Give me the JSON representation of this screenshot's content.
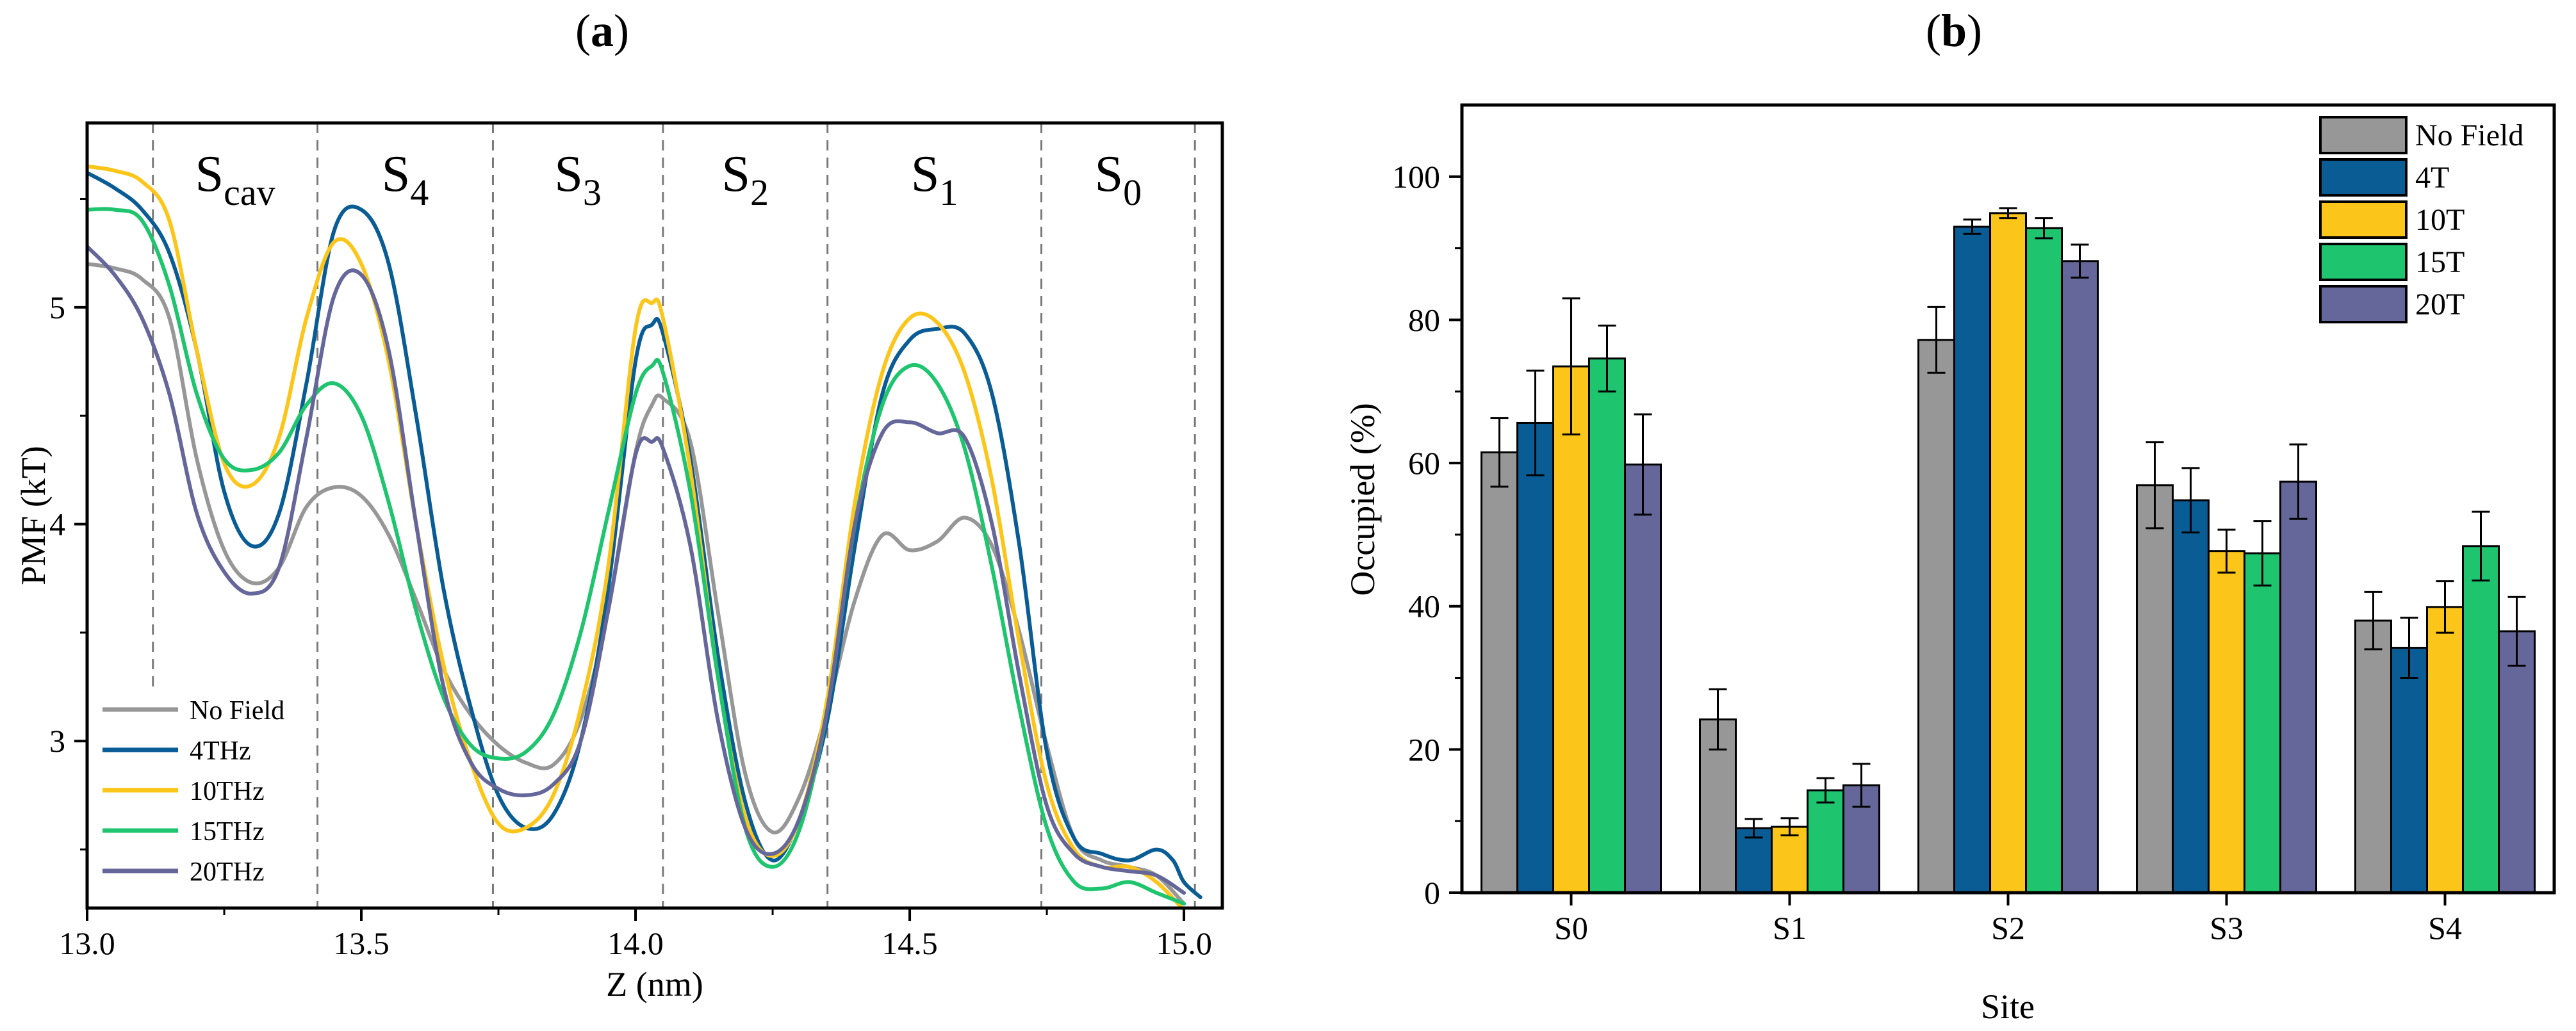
{
  "colors": {
    "no_field": "#979797",
    "f4": "#0a5c95",
    "f10": "#fcc519",
    "f15": "#1fc46e",
    "f20": "#65679a",
    "axis": "#000000",
    "grid_dash": "#7a7a7a"
  },
  "chart_data": [
    {
      "panel_label_open": "(",
      "panel_label_letter": "a",
      "panel_label_close": ")",
      "type": "line",
      "xlabel": "Z (nm)",
      "ylabel": "PMF (kT)",
      "xlim": [
        13.0,
        15.07
      ],
      "ylim": [
        2.23,
        5.85
      ],
      "xticks": [
        13.0,
        13.5,
        14.0,
        14.5,
        15.0
      ],
      "xtick_labels": [
        "13.0",
        "13.5",
        "14.0",
        "14.5",
        "15.0"
      ],
      "yticks": [
        3,
        4,
        5
      ],
      "ytick_labels": [
        "3",
        "4",
        "5"
      ],
      "site_boundaries": [
        13.12,
        13.42,
        13.74,
        14.05,
        14.35,
        14.74,
        15.02
      ],
      "sites": [
        {
          "base": "S",
          "sub": "cav",
          "x": 13.27
        },
        {
          "base": "S",
          "sub": "4",
          "x": 13.58
        },
        {
          "base": "S",
          "sub": "3",
          "x": 13.895
        },
        {
          "base": "S",
          "sub": "2",
          "x": 14.2
        },
        {
          "base": "S",
          "sub": "1",
          "x": 14.545
        },
        {
          "base": "S",
          "sub": "0",
          "x": 14.88
        }
      ],
      "legend_position": "bottom-left",
      "series": [
        {
          "name": "No Field",
          "color_key": "no_field",
          "points": [
            [
              13.0,
              5.2
            ],
            [
              13.05,
              5.18
            ],
            [
              13.1,
              5.13
            ],
            [
              13.15,
              4.95
            ],
            [
              13.2,
              4.3
            ],
            [
              13.25,
              3.88
            ],
            [
              13.3,
              3.73
            ],
            [
              13.35,
              3.8
            ],
            [
              13.4,
              4.08
            ],
            [
              13.45,
              4.17
            ],
            [
              13.5,
              4.13
            ],
            [
              13.55,
              3.95
            ],
            [
              13.6,
              3.65
            ],
            [
              13.65,
              3.33
            ],
            [
              13.7,
              3.12
            ],
            [
              13.75,
              2.98
            ],
            [
              13.8,
              2.9
            ],
            [
              13.85,
              2.89
            ],
            [
              13.9,
              3.1
            ],
            [
              13.95,
              3.6
            ],
            [
              14.0,
              4.33
            ],
            [
              14.03,
              4.55
            ],
            [
              14.05,
              4.58
            ],
            [
              14.1,
              4.38
            ],
            [
              14.15,
              3.6
            ],
            [
              14.2,
              2.85
            ],
            [
              14.25,
              2.58
            ],
            [
              14.3,
              2.75
            ],
            [
              14.35,
              3.15
            ],
            [
              14.4,
              3.65
            ],
            [
              14.45,
              3.95
            ],
            [
              14.5,
              3.88
            ],
            [
              14.55,
              3.92
            ],
            [
              14.6,
              4.03
            ],
            [
              14.65,
              3.9
            ],
            [
              14.7,
              3.5
            ],
            [
              14.75,
              2.98
            ],
            [
              14.8,
              2.55
            ],
            [
              14.85,
              2.45
            ],
            [
              14.9,
              2.42
            ],
            [
              14.95,
              2.38
            ],
            [
              15.0,
              2.25
            ]
          ]
        },
        {
          "name": "4THz",
          "color_key": "f4",
          "points": [
            [
              13.0,
              5.62
            ],
            [
              13.05,
              5.55
            ],
            [
              13.1,
              5.45
            ],
            [
              13.15,
              5.25
            ],
            [
              13.2,
              4.8
            ],
            [
              13.25,
              4.15
            ],
            [
              13.3,
              3.9
            ],
            [
              13.35,
              4.05
            ],
            [
              13.4,
              4.65
            ],
            [
              13.45,
              5.35
            ],
            [
              13.5,
              5.45
            ],
            [
              13.55,
              5.2
            ],
            [
              13.6,
              4.5
            ],
            [
              13.65,
              3.7
            ],
            [
              13.7,
              3.15
            ],
            [
              13.75,
              2.75
            ],
            [
              13.8,
              2.6
            ],
            [
              13.85,
              2.66
            ],
            [
              13.9,
              3.0
            ],
            [
              13.95,
              3.7
            ],
            [
              14.0,
              4.75
            ],
            [
              14.03,
              4.92
            ],
            [
              14.05,
              4.88
            ],
            [
              14.1,
              4.3
            ],
            [
              14.15,
              3.4
            ],
            [
              14.2,
              2.72
            ],
            [
              14.25,
              2.45
            ],
            [
              14.3,
              2.65
            ],
            [
              14.35,
              3.1
            ],
            [
              14.4,
              3.9
            ],
            [
              14.45,
              4.6
            ],
            [
              14.5,
              4.85
            ],
            [
              14.55,
              4.9
            ],
            [
              14.6,
              4.88
            ],
            [
              14.65,
              4.6
            ],
            [
              14.7,
              3.9
            ],
            [
              14.75,
              2.95
            ],
            [
              14.8,
              2.55
            ],
            [
              14.85,
              2.48
            ],
            [
              14.9,
              2.45
            ],
            [
              14.95,
              2.5
            ],
            [
              14.98,
              2.45
            ],
            [
              15.0,
              2.35
            ],
            [
              15.03,
              2.28
            ]
          ]
        },
        {
          "name": "10THz",
          "color_key": "f10",
          "points": [
            [
              13.0,
              5.65
            ],
            [
              13.05,
              5.63
            ],
            [
              13.1,
              5.58
            ],
            [
              13.15,
              5.4
            ],
            [
              13.2,
              4.8
            ],
            [
              13.25,
              4.28
            ],
            [
              13.3,
              4.18
            ],
            [
              13.35,
              4.4
            ],
            [
              13.4,
              4.95
            ],
            [
              13.45,
              5.3
            ],
            [
              13.5,
              5.2
            ],
            [
              13.55,
              4.75
            ],
            [
              13.6,
              4.0
            ],
            [
              13.65,
              3.35
            ],
            [
              13.7,
              2.9
            ],
            [
              13.75,
              2.62
            ],
            [
              13.8,
              2.6
            ],
            [
              13.85,
              2.75
            ],
            [
              13.9,
              3.15
            ],
            [
              13.95,
              3.8
            ],
            [
              14.0,
              4.9
            ],
            [
              14.03,
              5.02
            ],
            [
              14.05,
              4.95
            ],
            [
              14.1,
              4.25
            ],
            [
              14.15,
              3.3
            ],
            [
              14.2,
              2.65
            ],
            [
              14.25,
              2.47
            ],
            [
              14.3,
              2.65
            ],
            [
              14.35,
              3.2
            ],
            [
              14.4,
              4.1
            ],
            [
              14.45,
              4.7
            ],
            [
              14.5,
              4.95
            ],
            [
              14.55,
              4.93
            ],
            [
              14.6,
              4.7
            ],
            [
              14.65,
              4.2
            ],
            [
              14.7,
              3.45
            ],
            [
              14.75,
              2.8
            ],
            [
              14.8,
              2.5
            ],
            [
              14.85,
              2.42
            ],
            [
              14.9,
              2.42
            ],
            [
              14.95,
              2.35
            ],
            [
              15.0,
              2.22
            ]
          ]
        },
        {
          "name": "15THz",
          "color_key": "f15",
          "points": [
            [
              13.0,
              5.45
            ],
            [
              13.05,
              5.45
            ],
            [
              13.1,
              5.4
            ],
            [
              13.15,
              5.1
            ],
            [
              13.2,
              4.6
            ],
            [
              13.25,
              4.3
            ],
            [
              13.3,
              4.25
            ],
            [
              13.35,
              4.33
            ],
            [
              13.4,
              4.55
            ],
            [
              13.45,
              4.65
            ],
            [
              13.5,
              4.5
            ],
            [
              13.55,
              4.1
            ],
            [
              13.6,
              3.6
            ],
            [
              13.65,
              3.2
            ],
            [
              13.7,
              2.98
            ],
            [
              13.75,
              2.92
            ],
            [
              13.8,
              2.95
            ],
            [
              13.85,
              3.12
            ],
            [
              13.9,
              3.5
            ],
            [
              13.95,
              4.05
            ],
            [
              14.0,
              4.6
            ],
            [
              14.03,
              4.73
            ],
            [
              14.05,
              4.7
            ],
            [
              14.1,
              4.15
            ],
            [
              14.15,
              3.3
            ],
            [
              14.2,
              2.6
            ],
            [
              14.25,
              2.42
            ],
            [
              14.3,
              2.6
            ],
            [
              14.35,
              3.15
            ],
            [
              14.4,
              4.0
            ],
            [
              14.45,
              4.55
            ],
            [
              14.5,
              4.73
            ],
            [
              14.55,
              4.65
            ],
            [
              14.6,
              4.35
            ],
            [
              14.65,
              3.8
            ],
            [
              14.7,
              3.15
            ],
            [
              14.75,
              2.6
            ],
            [
              14.8,
              2.35
            ],
            [
              14.85,
              2.32
            ],
            [
              14.9,
              2.35
            ],
            [
              14.95,
              2.3
            ],
            [
              15.0,
              2.25
            ]
          ]
        },
        {
          "name": "20THz",
          "color_key": "f20",
          "points": [
            [
              13.0,
              5.28
            ],
            [
              13.05,
              5.15
            ],
            [
              13.1,
              4.95
            ],
            [
              13.15,
              4.6
            ],
            [
              13.2,
              4.05
            ],
            [
              13.25,
              3.78
            ],
            [
              13.3,
              3.68
            ],
            [
              13.35,
              3.8
            ],
            [
              13.4,
              4.4
            ],
            [
              13.45,
              5.05
            ],
            [
              13.5,
              5.15
            ],
            [
              13.55,
              4.8
            ],
            [
              13.6,
              4.0
            ],
            [
              13.65,
              3.25
            ],
            [
              13.7,
              2.9
            ],
            [
              13.75,
              2.78
            ],
            [
              13.8,
              2.75
            ],
            [
              13.85,
              2.8
            ],
            [
              13.9,
              3.0
            ],
            [
              13.95,
              3.6
            ],
            [
              14.0,
              4.32
            ],
            [
              14.03,
              4.38
            ],
            [
              14.05,
              4.35
            ],
            [
              14.1,
              3.9
            ],
            [
              14.15,
              3.1
            ],
            [
              14.2,
              2.6
            ],
            [
              14.25,
              2.48
            ],
            [
              14.3,
              2.65
            ],
            [
              14.35,
              3.15
            ],
            [
              14.4,
              4.0
            ],
            [
              14.45,
              4.42
            ],
            [
              14.5,
              4.47
            ],
            [
              14.55,
              4.42
            ],
            [
              14.6,
              4.4
            ],
            [
              14.65,
              4.0
            ],
            [
              14.7,
              3.3
            ],
            [
              14.75,
              2.7
            ],
            [
              14.8,
              2.48
            ],
            [
              14.85,
              2.42
            ],
            [
              14.9,
              2.4
            ],
            [
              14.95,
              2.38
            ],
            [
              15.0,
              2.3
            ]
          ]
        }
      ]
    },
    {
      "panel_label_open": "(",
      "panel_label_letter": "b",
      "panel_label_close": ")",
      "type": "bar",
      "xlabel": "Site",
      "ylabel": "Occupied (%)",
      "ylim": [
        0,
        110
      ],
      "yticks": [
        0,
        20,
        40,
        60,
        80,
        100
      ],
      "ytick_labels": [
        "0",
        "20",
        "40",
        "60",
        "80",
        "100"
      ],
      "categories": [
        "S0",
        "S1",
        "S2",
        "S3",
        "S4"
      ],
      "legend_position": "top-right",
      "series": [
        {
          "name": "No Field",
          "color_key": "no_field",
          "values": [
            61.5,
            24.2,
            77.2,
            56.9,
            38.0
          ],
          "errors": [
            4.8,
            4.2,
            4.6,
            6.0,
            4.0
          ]
        },
        {
          "name": "4T",
          "color_key": "f4",
          "values": [
            65.6,
            9.0,
            93.0,
            54.8,
            34.2
          ],
          "errors": [
            7.3,
            1.3,
            1.0,
            4.5,
            4.2
          ]
        },
        {
          "name": "10T",
          "color_key": "f10",
          "values": [
            73.5,
            9.2,
            94.9,
            47.7,
            39.9
          ],
          "errors": [
            9.5,
            1.2,
            0.7,
            3.0,
            3.6
          ]
        },
        {
          "name": "15T",
          "color_key": "f15",
          "values": [
            74.6,
            14.3,
            92.8,
            47.4,
            48.4
          ],
          "errors": [
            4.6,
            1.7,
            1.4,
            4.5,
            4.8
          ]
        },
        {
          "name": "20T",
          "color_key": "f20",
          "values": [
            59.8,
            15.0,
            88.2,
            57.4,
            36.5
          ],
          "errors": [
            7.0,
            3.0,
            2.3,
            5.2,
            4.8
          ]
        }
      ]
    }
  ]
}
